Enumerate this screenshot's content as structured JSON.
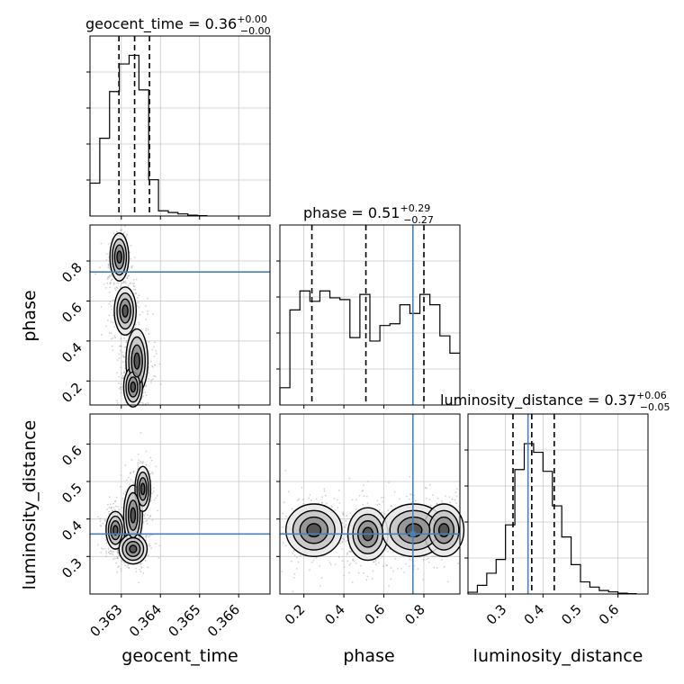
{
  "chart_data": {
    "type": "corner",
    "parameters": [
      "geocent_time",
      "phase",
      "luminosity_distance"
    ],
    "titles": [
      {
        "param": "geocent_time",
        "value": "0.36",
        "plus": "+0.00",
        "minus": "−0.00"
      },
      {
        "param": "phase",
        "value": "0.51",
        "plus": "+0.29",
        "minus": "−0.27"
      },
      {
        "param": "luminosity_distance",
        "value": "0.37",
        "plus": "+0.06",
        "minus": "−0.05"
      }
    ],
    "axis_labels": {
      "geocent_time": "geocent_time",
      "phase": "phase",
      "luminosity_distance": "luminosity_distance"
    },
    "ranges": {
      "geocent_time": [
        0.3622,
        0.3668
      ],
      "phase": [
        0.08,
        0.98
      ],
      "luminosity_distance": [
        0.2,
        0.68
      ]
    },
    "ticks": {
      "geocent_time": [
        "0.363",
        "0.364",
        "0.365",
        "0.366"
      ],
      "phase": [
        "0.2",
        "0.4",
        "0.6",
        "0.8"
      ],
      "luminosity_distance": [
        "0.3",
        "0.4",
        "0.5",
        "0.6"
      ]
    },
    "tick_values": {
      "geocent_time": [
        0.363,
        0.364,
        0.365,
        0.366
      ],
      "phase": [
        0.2,
        0.4,
        0.6,
        0.8
      ],
      "luminosity_distance": [
        0.3,
        0.4,
        0.5,
        0.6
      ]
    },
    "truths": {
      "geocent_time": null,
      "phase": 0.745,
      "luminosity_distance": 0.36
    },
    "quantiles": {
      "geocent_time": [
        0.36294,
        0.36334,
        0.36372
      ],
      "phase": [
        0.24,
        0.51,
        0.8
      ],
      "luminosity_distance": [
        0.32,
        0.37,
        0.43
      ]
    },
    "histograms": {
      "geocent_time": {
        "edges": [
          0.3622,
          0.36245,
          0.3627,
          0.36295,
          0.3632,
          0.36345,
          0.3637,
          0.36395,
          0.3642,
          0.36445,
          0.3647,
          0.36495,
          0.3652
        ],
        "counts": [
          0.19,
          0.45,
          0.72,
          0.88,
          0.93,
          0.73,
          0.21,
          0.03,
          0.02,
          0.012,
          0.005,
          0.002
        ]
      },
      "phase": {
        "edges": [
          0.08,
          0.13,
          0.18,
          0.23,
          0.28,
          0.33,
          0.38,
          0.43,
          0.48,
          0.53,
          0.58,
          0.63,
          0.68,
          0.73,
          0.78,
          0.83,
          0.88,
          0.93,
          0.98
        ],
        "counts": [
          0.1,
          0.55,
          0.66,
          0.6,
          0.66,
          0.62,
          0.61,
          0.39,
          0.64,
          0.37,
          0.46,
          0.47,
          0.58,
          0.53,
          0.64,
          0.58,
          0.4,
          0.3
        ]
      },
      "luminosity_distance": {
        "edges": [
          0.2,
          0.225,
          0.25,
          0.275,
          0.3,
          0.325,
          0.35,
          0.375,
          0.4,
          0.425,
          0.45,
          0.475,
          0.5,
          0.525,
          0.55,
          0.575,
          0.6,
          0.625,
          0.65
        ],
        "counts": [
          0.01,
          0.05,
          0.12,
          0.2,
          0.4,
          0.72,
          0.87,
          0.82,
          0.71,
          0.51,
          0.33,
          0.17,
          0.07,
          0.04,
          0.02,
          0.012,
          0.005,
          0.002
        ]
      }
    },
    "contour_levels_sigma": [
      0.5,
      1,
      1.5,
      2
    ],
    "grid": true,
    "truth_color": "#4682b4",
    "contour_color": "#000000",
    "scatter_color": "#999999"
  }
}
